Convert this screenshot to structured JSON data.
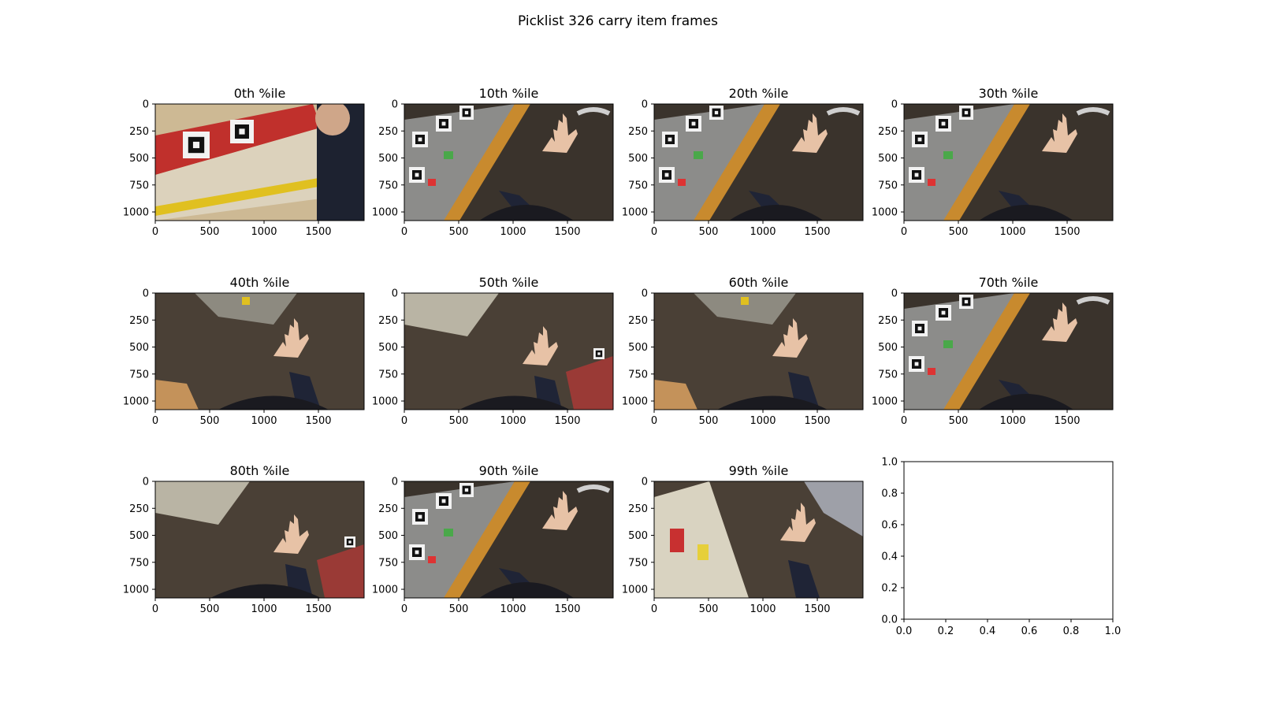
{
  "figure": {
    "title": "Picklist 326 carry item frames"
  },
  "colors": {
    "carpet": "#3a332c",
    "carpet_light": "#4a4036",
    "shelf_gray": "#8c8c8a",
    "wood": "#c88a2e",
    "sleeve": "#1f2436",
    "skin": "#e7c2a6",
    "red_chair": "#9a3a36",
    "tag_black": "#111111",
    "tag_white": "#f2f2f2"
  },
  "chart_data": [
    {
      "type": "image",
      "title": "0th %ile",
      "xticks": [
        "0",
        "500",
        "1000",
        "1500"
      ],
      "yticks": [
        "0",
        "250",
        "500",
        "750",
        "1000"
      ],
      "scene": "shelf-closeup"
    },
    {
      "type": "image",
      "title": "10th %ile",
      "xticks": [
        "0",
        "500",
        "1000",
        "1500"
      ],
      "yticks": [
        "0",
        "250",
        "500",
        "750",
        "1000"
      ],
      "scene": "overhead-shelf-left"
    },
    {
      "type": "image",
      "title": "20th %ile",
      "xticks": [
        "0",
        "500",
        "1000",
        "1500"
      ],
      "yticks": [
        "0",
        "250",
        "500",
        "750",
        "1000"
      ],
      "scene": "overhead-shelf-left"
    },
    {
      "type": "image",
      "title": "30th %ile",
      "xticks": [
        "0",
        "500",
        "1000",
        "1500"
      ],
      "yticks": [
        "0",
        "250",
        "500",
        "750",
        "1000"
      ],
      "scene": "overhead-shelf-left"
    },
    {
      "type": "image",
      "title": "40th %ile",
      "xticks": [
        "0",
        "500",
        "1000",
        "1500"
      ],
      "yticks": [
        "0",
        "250",
        "500",
        "750",
        "1000"
      ],
      "scene": "floor-hand"
    },
    {
      "type": "image",
      "title": "50th %ile",
      "xticks": [
        "0",
        "500",
        "1000",
        "1500"
      ],
      "yticks": [
        "0",
        "250",
        "500",
        "750",
        "1000"
      ],
      "scene": "floor-hand-chair"
    },
    {
      "type": "image",
      "title": "60th %ile",
      "xticks": [
        "0",
        "500",
        "1000",
        "1500"
      ],
      "yticks": [
        "0",
        "250",
        "500",
        "750",
        "1000"
      ],
      "scene": "floor-hand"
    },
    {
      "type": "image",
      "title": "70th %ile",
      "xticks": [
        "0",
        "500",
        "1000",
        "1500"
      ],
      "yticks": [
        "0",
        "250",
        "500",
        "750",
        "1000"
      ],
      "scene": "overhead-shelf-left"
    },
    {
      "type": "image",
      "title": "80th %ile",
      "xticks": [
        "0",
        "500",
        "1000",
        "1500"
      ],
      "yticks": [
        "0",
        "250",
        "500",
        "750",
        "1000"
      ],
      "scene": "floor-hand-chair"
    },
    {
      "type": "image",
      "title": "90th %ile",
      "xticks": [
        "0",
        "500",
        "1000",
        "1500"
      ],
      "yticks": [
        "0",
        "250",
        "500",
        "750",
        "1000"
      ],
      "scene": "overhead-shelf-left"
    },
    {
      "type": "image",
      "title": "99th %ile",
      "xticks": [
        "0",
        "500",
        "1000",
        "1500"
      ],
      "yticks": [
        "0",
        "250",
        "500",
        "750",
        "1000"
      ],
      "scene": "blur-shelf"
    },
    {
      "type": "empty",
      "title": "",
      "xticks": [
        "0.0",
        "0.2",
        "0.4",
        "0.6",
        "0.8",
        "1.0"
      ],
      "yticks": [
        "0.0",
        "0.2",
        "0.4",
        "0.6",
        "0.8",
        "1.0"
      ]
    }
  ]
}
